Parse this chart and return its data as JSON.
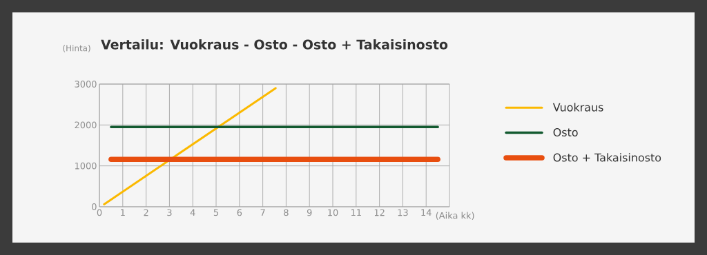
{
  "chart_data": {
    "type": "line",
    "title": "Vertailu: Vuokraus - Osto - Osto + Takaisinosto",
    "xlabel": "(Aika kk)",
    "ylabel": "(Hinta)",
    "series": [
      {
        "name": "Vuokraus",
        "color": "#fbb900",
        "x": [
          0.2,
          7.55
        ],
        "values": [
          60,
          2900
        ]
      },
      {
        "name": "Osto",
        "color": "#135a30",
        "x": [
          0.5,
          14.5
        ],
        "values": [
          1950,
          1950
        ]
      },
      {
        "name": "Osto + Takaisinosto",
        "color": "#e84e0f",
        "x": [
          0.5,
          14.5
        ],
        "values": [
          1160,
          1160
        ]
      }
    ],
    "xlim": [
      0,
      15
    ],
    "xticks": [
      0,
      1,
      2,
      3,
      4,
      5,
      6,
      7,
      8,
      9,
      10,
      11,
      12,
      13,
      14
    ],
    "ylim": [
      0,
      3000
    ],
    "yticks": [
      0,
      1000,
      2000,
      3000
    ],
    "grid": true,
    "legend": "right",
    "marker": "none",
    "line_style": "solid"
  }
}
